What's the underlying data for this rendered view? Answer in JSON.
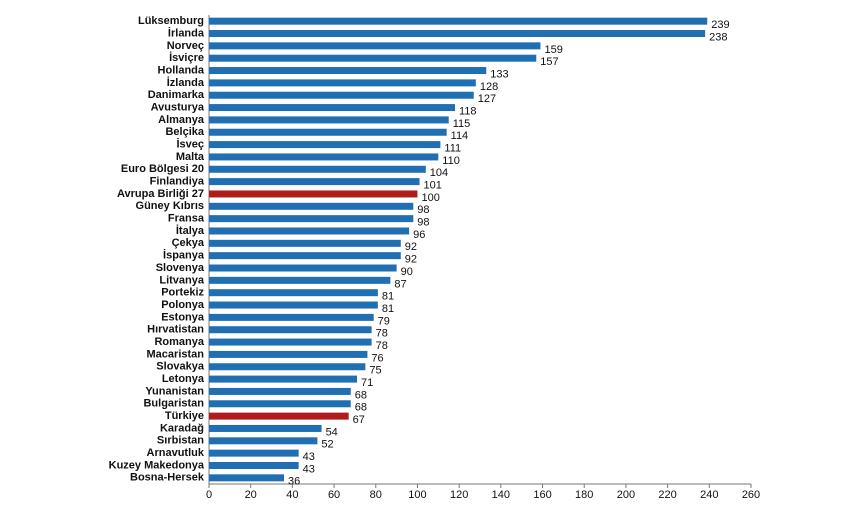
{
  "chart_data": {
    "type": "barh",
    "categories": [
      "Lüksemburg",
      "İrlanda",
      "Norveç",
      "İsviçre",
      "Hollanda",
      "İzlanda",
      "Danimarka",
      "Avusturya",
      "Almanya",
      "Belçika",
      "İsveç",
      "Malta",
      "Euro Bölgesi 20",
      "Finlandiya",
      "Avrupa Birliği 27",
      "Güney Kıbrıs",
      "Fransa",
      "İtalya",
      "Çekya",
      "İspanya",
      "Slovenya",
      "Litvanya",
      "Portekiz",
      "Polonya",
      "Estonya",
      "Hırvatistan",
      "Romanya",
      "Macaristan",
      "Slovakya",
      "Letonya",
      "Yunanistan",
      "Bulgaristan",
      "Türkiye",
      "Karadağ",
      "Sırbistan",
      "Arnavutluk",
      "Kuzey Makedonya",
      "Bosna-Hersek"
    ],
    "values": [
      239,
      238,
      159,
      157,
      133,
      128,
      127,
      118,
      115,
      114,
      111,
      110,
      104,
      101,
      100,
      98,
      98,
      96,
      92,
      92,
      90,
      87,
      81,
      81,
      79,
      78,
      78,
      76,
      75,
      71,
      68,
      68,
      67,
      54,
      52,
      43,
      43,
      36
    ],
    "colors": [
      "#1f6fb2",
      "#1f6fb2",
      "#1f6fb2",
      "#1f6fb2",
      "#1f6fb2",
      "#1f6fb2",
      "#1f6fb2",
      "#1f6fb2",
      "#1f6fb2",
      "#1f6fb2",
      "#1f6fb2",
      "#1f6fb2",
      "#1f6fb2",
      "#1f6fb2",
      "#b01c1c",
      "#1f6fb2",
      "#1f6fb2",
      "#1f6fb2",
      "#1f6fb2",
      "#1f6fb2",
      "#1f6fb2",
      "#1f6fb2",
      "#1f6fb2",
      "#1f6fb2",
      "#1f6fb2",
      "#1f6fb2",
      "#1f6fb2",
      "#1f6fb2",
      "#1f6fb2",
      "#1f6fb2",
      "#1f6fb2",
      "#1f6fb2",
      "#b01c1c",
      "#1f6fb2",
      "#1f6fb2",
      "#1f6fb2",
      "#1f6fb2",
      "#1f6fb2"
    ],
    "xlim": [
      0,
      260
    ],
    "xticks": [
      0,
      20,
      40,
      60,
      80,
      100,
      120,
      140,
      160,
      180,
      200,
      220,
      240,
      260
    ],
    "grid": false
  }
}
